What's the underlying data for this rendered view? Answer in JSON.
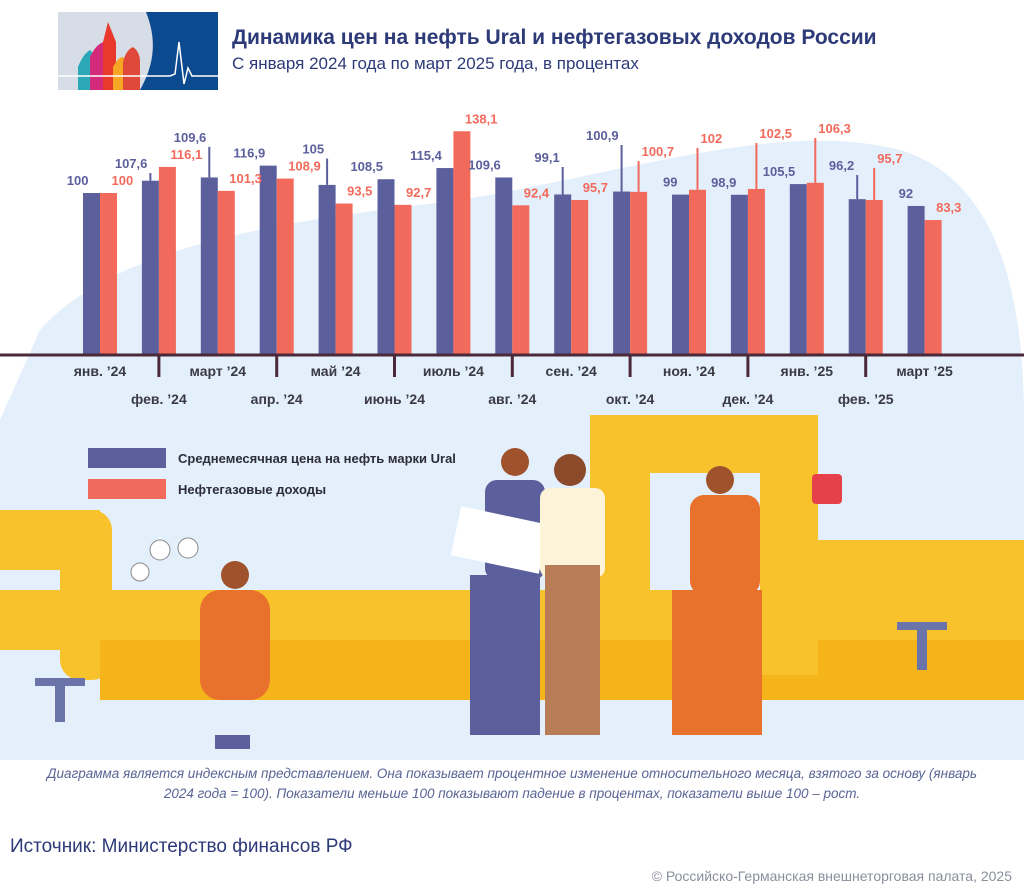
{
  "header": {
    "title": "Динамика цен на нефть Ural и нефтегазовых доходов России",
    "subtitle": "С января 2024 года по март 2025 года, в процентах"
  },
  "legend": [
    {
      "label": "Среднемесячная цена на нефть марки Ural",
      "color": "#5b5f9c"
    },
    {
      "label": "Нефтегазовые доходы",
      "color": "#f26a5b"
    }
  ],
  "chart_data": {
    "type": "bar",
    "title": "Динамика цен на нефть Ural и нефтегазовых доходов России",
    "subtitle": "С января 2024 года по март 2025 года, в процентах",
    "categories": [
      "янв. ’24",
      "фев. ’24",
      "март ’24",
      "апр. ’24",
      "май ’24",
      "июнь ’24",
      "июль ’24",
      "авг. ’24",
      "сен. ’24",
      "окт. ’24",
      "ноя. ’24",
      "дек. ’24",
      "янв. ’25",
      "фев. ’25",
      "март ’25"
    ],
    "series": [
      {
        "name": "Среднемесячная цена на нефть марки Ural",
        "color": "#5b5f9c",
        "values": [
          100,
          107.6,
          109.6,
          116.9,
          105,
          108.5,
          115.4,
          109.6,
          99.1,
          100.9,
          99,
          98.9,
          105.5,
          96.2,
          92
        ],
        "labels": [
          "100",
          "107,6",
          "109,6",
          "116,9",
          "105",
          "108,5",
          "115,4",
          "109,6",
          "99,1",
          "100,9",
          "99",
          "98,9",
          "105,5",
          "96,2",
          "92"
        ]
      },
      {
        "name": "Нефтегазовые доходы",
        "color": "#f26a5b",
        "values": [
          100,
          116.1,
          101.3,
          108.9,
          93.5,
          92.7,
          138.1,
          92.4,
          95.7,
          100.7,
          102,
          102.5,
          106.3,
          95.7,
          83.3
        ],
        "labels": [
          "100",
          "116,1",
          "101,3",
          "108,9",
          "93,5",
          "92,7",
          "138,1",
          "92,4",
          "95,7",
          "100,7",
          "102",
          "102,5",
          "106,3",
          "95,7",
          "83,3"
        ]
      }
    ],
    "ylim": [
      0,
      140
    ],
    "grid": false,
    "legend_placement": "bottom-left"
  },
  "footer": {
    "note": "Диаграмма является индексным представлением. Она показывает процентное изменение относительного месяца, взятого за основу (январь 2024 года = 100). Показатели меньше 100 показывают падение в процентах, показатели выше 100 – рост.",
    "source": "Источник: Министерство финансов РФ",
    "copyright": "© Российско-Германская внешнеторговая палата, 2025"
  },
  "colors": {
    "axis": "#4a2a3a",
    "title": "#2d3a78",
    "pipe": "#f7c22b",
    "background_blob": "#e3effb"
  }
}
